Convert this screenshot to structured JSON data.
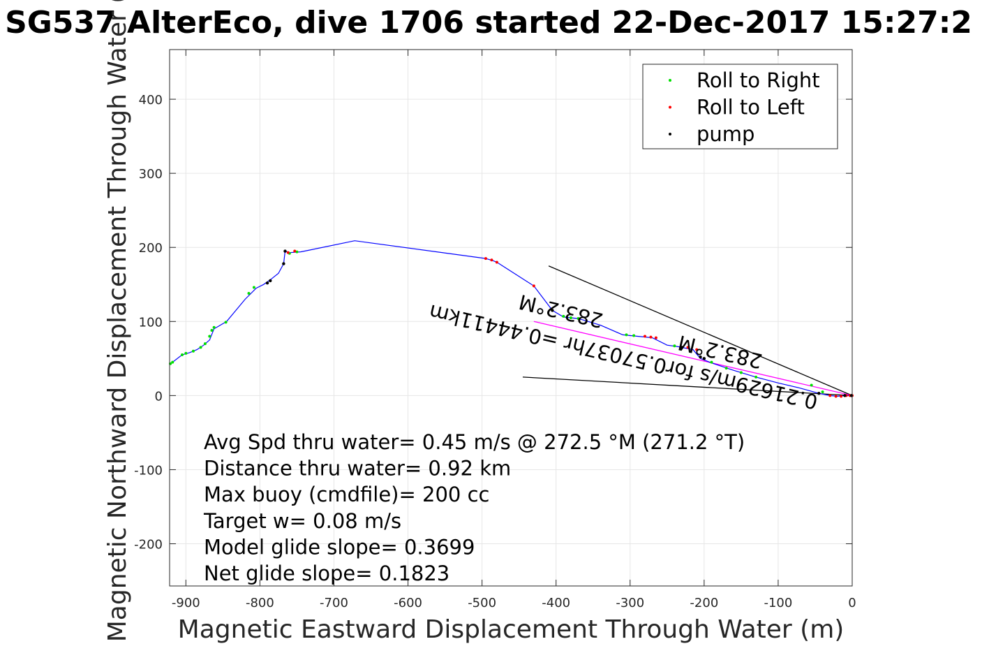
{
  "chart_data": {
    "type": "scatter",
    "title": "SG537 AlterEco, dive 1706 started 22-Dec-2017 15:27:2",
    "xlabel": "Magnetic Eastward Displacement Through Water (m)",
    "ylabel": "Magnetic Northward Displacement Through Water (",
    "xlim": [
      -922,
      0
    ],
    "ylim": [
      -257,
      467
    ],
    "grid": true,
    "x_ticks": [
      "-900",
      "-800",
      "-700",
      "-600",
      "-500",
      "-400",
      "-300",
      "-200",
      "-100",
      "0"
    ],
    "x_tick_values": [
      -900,
      -800,
      -700,
      -600,
      -500,
      -400,
      -300,
      -200,
      -100,
      0
    ],
    "y_ticks": [
      "-200",
      "-100",
      "0",
      "100",
      "200",
      "300",
      "400"
    ],
    "y_tick_values": [
      -200,
      -100,
      0,
      100,
      200,
      300,
      400
    ],
    "legend": {
      "placement": "top-right",
      "entries": [
        "Roll to Right",
        "Roll to Left",
        "pump"
      ],
      "colors": [
        "#00e000",
        "#ff0000",
        "#000000"
      ]
    },
    "track": {
      "color": "#0000ff",
      "points": [
        [
          -922,
          42
        ],
        [
          -918,
          45
        ],
        [
          -905,
          55
        ],
        [
          -895,
          58
        ],
        [
          -885,
          62
        ],
        [
          -876,
          68
        ],
        [
          -868,
          75
        ],
        [
          -862,
          90
        ],
        [
          -845,
          100
        ],
        [
          -820,
          130
        ],
        [
          -805,
          145
        ],
        [
          -795,
          150
        ],
        [
          -785,
          157
        ],
        [
          -775,
          165
        ],
        [
          -768,
          178
        ],
        [
          -766,
          195
        ],
        [
          -760,
          193
        ],
        [
          -745,
          194
        ],
        [
          -735,
          196
        ],
        [
          -672,
          209
        ],
        [
          -495,
          185
        ],
        [
          -485,
          182
        ],
        [
          -480,
          180
        ],
        [
          -430,
          148
        ],
        [
          -405,
          115
        ],
        [
          -390,
          106
        ],
        [
          -370,
          104
        ],
        [
          -340,
          95
        ],
        [
          -310,
          82
        ],
        [
          -290,
          80
        ],
        [
          -270,
          78
        ],
        [
          -250,
          68
        ],
        [
          -235,
          66
        ],
        [
          -225,
          64
        ],
        [
          -215,
          62
        ],
        [
          -205,
          50
        ],
        [
          -190,
          44
        ],
        [
          -160,
          34
        ],
        [
          -130,
          25
        ],
        [
          -100,
          17
        ],
        [
          -70,
          10
        ],
        [
          -45,
          3
        ],
        [
          -30,
          0
        ],
        [
          -20,
          -1
        ],
        [
          -10,
          0
        ],
        [
          0,
          0
        ]
      ]
    },
    "roll_right_points": [
      [
        -921,
        43
      ],
      [
        -918,
        45
      ],
      [
        -905,
        55
      ],
      [
        -900,
        57
      ],
      [
        -890,
        60
      ],
      [
        -880,
        65
      ],
      [
        -874,
        70
      ],
      [
        -868,
        80
      ],
      [
        -865,
        88
      ],
      [
        -862,
        92
      ],
      [
        -846,
        99
      ],
      [
        -815,
        138
      ],
      [
        -808,
        146
      ],
      [
        -760,
        192
      ],
      [
        -750,
        194
      ],
      [
        -390,
        107
      ],
      [
        -380,
        105
      ],
      [
        -370,
        104
      ],
      [
        -305,
        82
      ],
      [
        -295,
        81
      ],
      [
        -240,
        67
      ],
      [
        -190,
        45
      ],
      [
        -170,
        37
      ],
      [
        -150,
        31
      ],
      [
        -130,
        25
      ],
      [
        -55,
        14
      ],
      [
        -40,
        5
      ]
    ],
    "roll_left_points": [
      [
        -762,
        193
      ],
      [
        -753,
        195
      ],
      [
        -495,
        185
      ],
      [
        -487,
        183
      ],
      [
        -480,
        180
      ],
      [
        -430,
        148
      ],
      [
        -280,
        80
      ],
      [
        -272,
        79
      ],
      [
        -265,
        78
      ],
      [
        -222,
        65
      ],
      [
        -210,
        62
      ],
      [
        -30,
        0
      ],
      [
        -22,
        -1
      ],
      [
        -15,
        -1
      ],
      [
        -8,
        0
      ],
      [
        -3,
        0
      ],
      [
        0,
        0
      ]
    ],
    "pump_points": [
      [
        -790,
        152
      ],
      [
        -786,
        155
      ],
      [
        -768,
        178
      ],
      [
        -766,
        195
      ],
      [
        -405,
        115
      ],
      [
        -230,
        65
      ],
      [
        -205,
        52
      ],
      [
        -200,
        50
      ],
      [
        -45,
        3
      ],
      [
        -10,
        0
      ],
      [
        -1,
        0
      ]
    ],
    "current_lines": [
      {
        "from": [
          -410,
          175
        ],
        "to": [
          0,
          0
        ],
        "color": "#000000"
      },
      {
        "from": [
          -445,
          25
        ],
        "to": [
          0,
          0
        ],
        "color": "#000000"
      },
      {
        "from": [
          -430,
          100
        ],
        "to": [
          0,
          0
        ],
        "color": "#ff00ff"
      }
    ],
    "annotations": [
      {
        "text": "0.21629m/s for0.57037hr =0.44411km",
        "anchor": [
          -45,
          0
        ],
        "rotation_deg": 193.2
      },
      {
        "text": "283.2°M",
        "anchor": [
          -335,
          110
        ],
        "rotation_deg": 193.2
      },
      {
        "text": "283.2°M",
        "anchor": [
          -120,
          55
        ],
        "rotation_deg": 193.2
      }
    ],
    "stats": [
      "Avg Spd thru water=  0.45 m/s @ 272.5 °M (271.2 °T)",
      "Distance thru water=  0.92 km",
      "Max buoy (cmdfile)= 200 cc",
      "Target w= 0.08 m/s",
      "Model glide slope= 0.3699",
      "Net glide slope= 0.1823"
    ]
  }
}
